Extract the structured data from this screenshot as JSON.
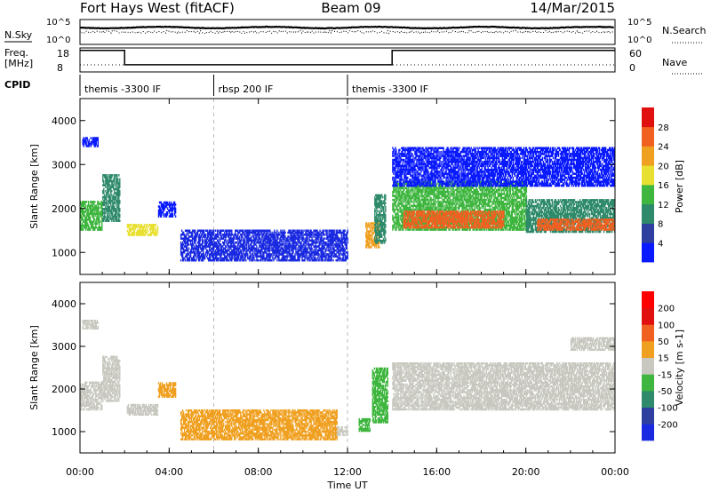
{
  "header": {
    "title": "Fort Hays West (fitACF)",
    "beam": "Beam 09",
    "date": "14/Mar/2015"
  },
  "sky_panel": {
    "left_label": "N.Sky",
    "right_label": "N.Search",
    "left_ticks": [
      "10^5",
      "10^0"
    ],
    "right_ticks": [
      "10^5",
      "10^0"
    ]
  },
  "freq_panel": {
    "left_label_1": "Freq.",
    "left_label_2": "[MHz]",
    "right_label": "Nave",
    "left_ticks": [
      "18",
      "8"
    ],
    "right_ticks": [
      "60",
      "0"
    ],
    "segments": [
      {
        "t_start": 0,
        "t_end": 2,
        "freq_mhz": 17
      },
      {
        "t_start": 2,
        "t_end": 14,
        "freq_mhz": 11
      },
      {
        "t_start": 14,
        "t_end": 24,
        "freq_mhz": 17
      }
    ]
  },
  "cpid": {
    "label": "CPID",
    "segments": [
      {
        "t_start": 0,
        "t_end": 6,
        "name": "themis -3300 IF"
      },
      {
        "t_start": 6,
        "t_end": 12,
        "name": "rbsp 200 IF"
      },
      {
        "t_start": 12,
        "t_end": 24,
        "name": "themis -3300 IF"
      }
    ]
  },
  "chart_data": [
    {
      "type": "heatmap",
      "name": "power",
      "xlabel": "Time UT",
      "ylabel": "Slant Range [km]",
      "xlim": [
        0,
        24
      ],
      "ylim": [
        500,
        4500
      ],
      "xticks": [
        "00:00",
        "04:00",
        "08:00",
        "12:00",
        "16:00",
        "20:00",
        "00:00"
      ],
      "yticks": [
        1000,
        2000,
        3000,
        4000
      ],
      "colorbar": {
        "label": "Power [dB]",
        "ticks": [
          "4",
          "8",
          "12",
          "16",
          "20",
          "24",
          "28"
        ],
        "colors": [
          "#0a1aff",
          "#2f3fa0",
          "#2e8a6a",
          "#3fb63f",
          "#e8e030",
          "#f0a020",
          "#f06020",
          "#e01010"
        ]
      },
      "regions": [
        {
          "t_start": 0.0,
          "t_end": 1.0,
          "r_low": 1500,
          "r_high": 2150,
          "color": "#3fb63f"
        },
        {
          "t_start": 1.0,
          "t_end": 1.8,
          "r_low": 1700,
          "r_high": 2750,
          "color": "#2e8a6a"
        },
        {
          "t_start": 0.1,
          "t_end": 0.8,
          "r_low": 3400,
          "r_high": 3600,
          "color": "#0a1aff"
        },
        {
          "t_start": 2.1,
          "t_end": 3.5,
          "r_low": 1380,
          "r_high": 1650,
          "color": "#e8e030"
        },
        {
          "t_start": 3.5,
          "t_end": 4.3,
          "r_low": 1800,
          "r_high": 2150,
          "color": "#0a1aff"
        },
        {
          "t_start": 4.5,
          "t_end": 12.0,
          "r_low": 800,
          "r_high": 1500,
          "color": "#1a2ae0"
        },
        {
          "t_start": 12.8,
          "t_end": 13.4,
          "r_low": 1100,
          "r_high": 1650,
          "color": "#f0a020"
        },
        {
          "t_start": 13.2,
          "t_end": 13.7,
          "r_low": 1200,
          "r_high": 2300,
          "color": "#2e8a6a"
        },
        {
          "t_start": 14.0,
          "t_end": 20.0,
          "r_low": 1500,
          "r_high": 2600,
          "color": "#3fb63f"
        },
        {
          "t_start": 14.5,
          "t_end": 19.0,
          "r_low": 1550,
          "r_high": 1950,
          "color": "#f06020"
        },
        {
          "t_start": 20.0,
          "t_end": 24.0,
          "r_low": 1450,
          "r_high": 2200,
          "color": "#2e8a6a"
        },
        {
          "t_start": 20.5,
          "t_end": 24.0,
          "r_low": 1500,
          "r_high": 1750,
          "color": "#f06020"
        },
        {
          "t_start": 14.0,
          "t_end": 24.0,
          "r_low": 2500,
          "r_high": 3400,
          "color": "#0a1aff"
        }
      ]
    },
    {
      "type": "heatmap",
      "name": "velocity",
      "xlabel": "Time UT",
      "ylabel": "Slant Range [km]",
      "xlim": [
        0,
        24
      ],
      "ylim": [
        500,
        4500
      ],
      "xticks": [
        "00:00",
        "04:00",
        "08:00",
        "12:00",
        "16:00",
        "20:00",
        "00:00"
      ],
      "yticks": [
        1000,
        2000,
        3000,
        4000
      ],
      "colorbar": {
        "label": "Velocity [m s-1]",
        "ticks": [
          "200",
          "100",
          "50",
          "15",
          "-15",
          "-50",
          "-100",
          "-200"
        ],
        "colors": [
          "#1a2ae0",
          "#2f3fa0",
          "#2e8a6a",
          "#3fb63f",
          "#c8c8c0",
          "#f0a020",
          "#f06020",
          "#e01010",
          "#ff0000"
        ]
      },
      "regions": [
        {
          "t_start": 0.0,
          "t_end": 1.0,
          "r_low": 1500,
          "r_high": 2150,
          "color": "#c8c8c0"
        },
        {
          "t_start": 1.0,
          "t_end": 1.8,
          "r_low": 1700,
          "r_high": 2750,
          "color": "#c8c8c0"
        },
        {
          "t_start": 0.1,
          "t_end": 0.8,
          "r_low": 3400,
          "r_high": 3600,
          "color": "#c8c8c0"
        },
        {
          "t_start": 2.1,
          "t_end": 3.5,
          "r_low": 1380,
          "r_high": 1650,
          "color": "#c8c8c0"
        },
        {
          "t_start": 3.5,
          "t_end": 4.3,
          "r_low": 1800,
          "r_high": 2150,
          "color": "#f0a020"
        },
        {
          "t_start": 4.5,
          "t_end": 11.5,
          "r_low": 800,
          "r_high": 1500,
          "color": "#f0a020"
        },
        {
          "t_start": 11.5,
          "t_end": 12.0,
          "r_low": 900,
          "r_high": 1100,
          "color": "#c8c8c0"
        },
        {
          "t_start": 12.5,
          "t_end": 13.0,
          "r_low": 1000,
          "r_high": 1300,
          "color": "#3fb63f"
        },
        {
          "t_start": 13.1,
          "t_end": 13.8,
          "r_low": 1200,
          "r_high": 2500,
          "color": "#3fb63f"
        },
        {
          "t_start": 14.0,
          "t_end": 24.0,
          "r_low": 1500,
          "r_high": 2600,
          "color": "#c8c8c0"
        },
        {
          "t_start": 22.0,
          "t_end": 24.0,
          "r_low": 2900,
          "r_high": 3200,
          "color": "#c8c8c0"
        }
      ]
    }
  ]
}
